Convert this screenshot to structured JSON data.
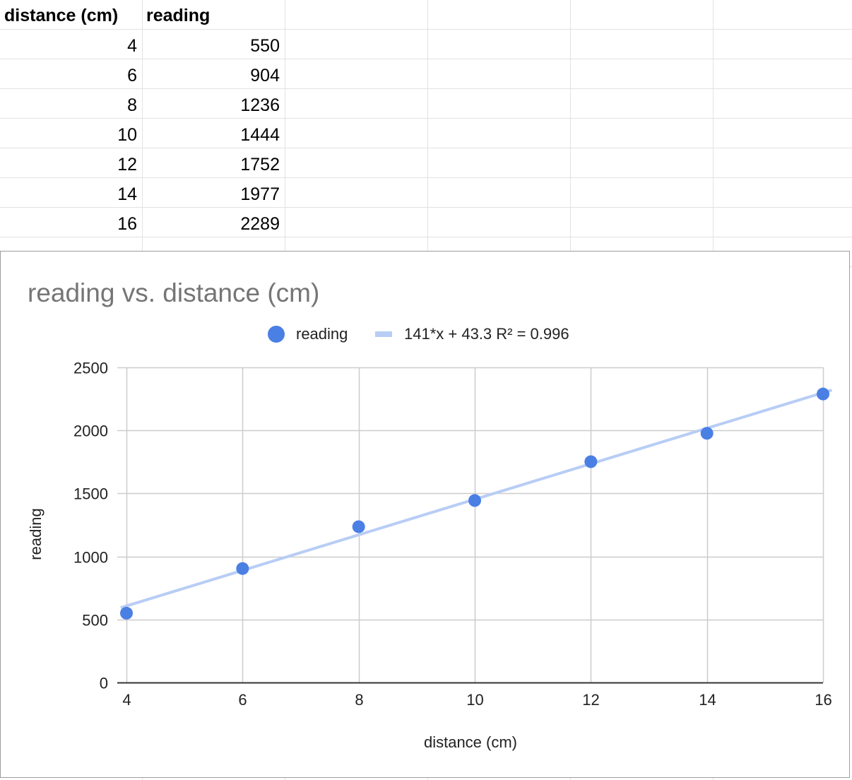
{
  "sheet": {
    "headers": [
      "distance (cm)",
      "reading"
    ],
    "rows": [
      [
        "4",
        "550"
      ],
      [
        "6",
        "904"
      ],
      [
        "8",
        "1236"
      ],
      [
        "10",
        "1444"
      ],
      [
        "12",
        "1752"
      ],
      [
        "14",
        "1977"
      ],
      [
        "16",
        "2289"
      ]
    ]
  },
  "chart_data": {
    "type": "scatter",
    "title": "reading vs. distance (cm)",
    "xlabel": "distance (cm)",
    "ylabel": "reading",
    "xlim": [
      4,
      16
    ],
    "ylim": [
      0,
      2500
    ],
    "xticks": [
      4,
      6,
      8,
      10,
      12,
      14,
      16
    ],
    "yticks": [
      0,
      500,
      1000,
      1500,
      2000,
      2500
    ],
    "grid": true,
    "legend_position": "top",
    "series": [
      {
        "name": "reading",
        "color": "#4a7fe4",
        "x": [
          4,
          6,
          8,
          10,
          12,
          14,
          16
        ],
        "y": [
          550,
          904,
          1236,
          1444,
          1752,
          1977,
          2289
        ]
      }
    ],
    "trendline": {
      "label": "141*x + 43.3 R² = 0.996",
      "slope": 141,
      "intercept": 43.3,
      "r2": 0.996,
      "color": "#b8cdf5"
    }
  }
}
